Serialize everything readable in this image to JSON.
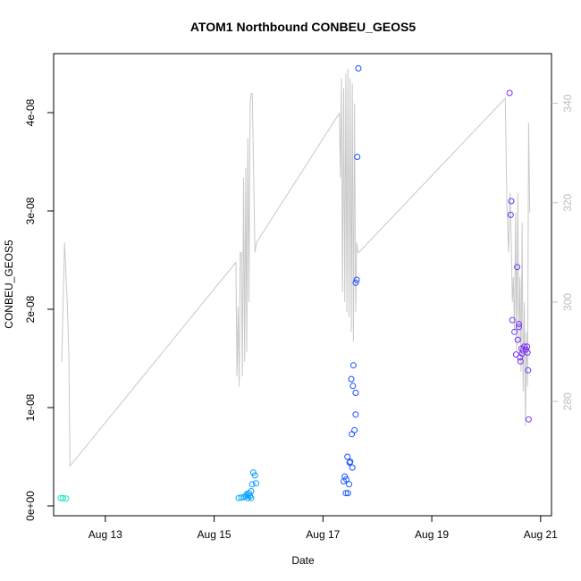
{
  "chart_data": {
    "type": "scatter",
    "title": "ATOM1 Northbound CONBEU_GEOS5",
    "xlabel": "Date",
    "ylabel": "CONBEU_GEOS5",
    "x_ticks": [
      "Aug 13",
      "Aug 15",
      "Aug 17",
      "Aug 19",
      "Aug 21"
    ],
    "y_ticks": [
      "0e+00",
      "1e-08",
      "2e-08",
      "3e-08",
      "4e-08"
    ],
    "y_right_ticks": [
      "280",
      "300",
      "320",
      "340"
    ],
    "xlim": [
      12.05,
      21.2
    ],
    "ylim": [
      -1e-09,
      4.6e-08
    ],
    "y_right_lim": [
      257,
      350
    ],
    "grid": false,
    "colors": {
      "axis": "#000000",
      "right_axis": "#bdbdbd",
      "line": "#c8c8c8",
      "points_gradient": [
        "#1de9b6",
        "#00bfff",
        "#1e40ff",
        "#7b2ff7"
      ]
    },
    "series": [
      {
        "kind": "points",
        "points": [
          [
            12.18,
            8e-10
          ],
          [
            12.22,
            8e-10
          ],
          [
            12.28,
            7.5e-10
          ],
          [
            15.45,
            8e-10
          ],
          [
            15.5,
            8.5e-10
          ],
          [
            15.55,
            9e-10
          ],
          [
            15.58,
            1e-09
          ],
          [
            15.6,
            1.2e-09
          ],
          [
            15.62,
            8e-10
          ],
          [
            15.64,
            1.3e-09
          ],
          [
            15.66,
            1e-09
          ],
          [
            15.68,
            1.5e-09
          ],
          [
            15.7,
            2.2e-09
          ],
          [
            15.72,
            3.4e-09
          ],
          [
            15.75,
            3.1e-09
          ],
          [
            15.77,
            2.3e-09
          ],
          [
            15.68,
            8e-10
          ],
          [
            15.63,
            1.1e-09
          ],
          [
            17.38,
            2.5e-09
          ],
          [
            17.4,
            3e-09
          ],
          [
            17.42,
            1.3e-09
          ],
          [
            17.43,
            2.7e-09
          ],
          [
            17.45,
            5e-09
          ],
          [
            17.46,
            1.3e-09
          ],
          [
            17.48,
            2.2e-09
          ],
          [
            17.49,
            4.4e-09
          ],
          [
            17.5,
            4.5e-09
          ],
          [
            17.52,
            1.29e-08
          ],
          [
            17.53,
            7.3e-09
          ],
          [
            17.54,
            3.9e-09
          ],
          [
            17.55,
            1.22e-08
          ],
          [
            17.56,
            1.43e-08
          ],
          [
            17.58,
            7.7e-09
          ],
          [
            17.6,
            9.3e-09
          ],
          [
            17.6,
            1.15e-08
          ],
          [
            17.6,
            2.27e-08
          ],
          [
            17.62,
            2.3e-08
          ],
          [
            17.63,
            3.55e-08
          ],
          [
            17.65,
            4.45e-08
          ],
          [
            20.43,
            4.2e-08
          ],
          [
            20.45,
            2.96e-08
          ],
          [
            20.46,
            3.1e-08
          ],
          [
            20.48,
            1.89e-08
          ],
          [
            20.52,
            1.77e-08
          ],
          [
            20.55,
            1.54e-08
          ],
          [
            20.57,
            2.43e-08
          ],
          [
            20.58,
            1.69e-08
          ],
          [
            20.6,
            1.85e-08
          ],
          [
            20.6,
            1.82e-08
          ],
          [
            20.62,
            1.51e-08
          ],
          [
            20.63,
            1.47e-08
          ],
          [
            20.65,
            1.6e-08
          ],
          [
            20.66,
            1.55e-08
          ],
          [
            20.68,
            1.58e-08
          ],
          [
            20.7,
            1.62e-08
          ],
          [
            20.73,
            1.59e-08
          ],
          [
            20.75,
            1.62e-08
          ],
          [
            20.76,
            1.56e-08
          ],
          [
            20.77,
            1.38e-08
          ],
          [
            20.78,
            8.8e-09
          ]
        ]
      },
      {
        "kind": "line",
        "axis": "right",
        "points": [
          [
            12.2,
            288
          ],
          [
            12.25,
            312
          ],
          [
            12.3,
            300
          ],
          [
            12.33,
            290
          ],
          [
            12.35,
            267
          ],
          [
            15.4,
            308
          ],
          [
            15.42,
            285
          ],
          [
            15.44,
            299
          ],
          [
            15.46,
            283
          ],
          [
            15.48,
            310
          ],
          [
            15.5,
            310
          ],
          [
            15.52,
            285
          ],
          [
            15.54,
            325
          ],
          [
            15.56,
            288
          ],
          [
            15.58,
            327
          ],
          [
            15.6,
            290
          ],
          [
            15.62,
            333
          ],
          [
            15.64,
            300
          ],
          [
            15.66,
            340
          ],
          [
            15.68,
            342
          ],
          [
            15.7,
            342
          ],
          [
            15.72,
            330
          ],
          [
            15.75,
            310
          ],
          [
            15.78,
            312
          ],
          [
            17.3,
            338
          ],
          [
            17.32,
            325
          ],
          [
            17.34,
            345
          ],
          [
            17.36,
            302
          ],
          [
            17.38,
            343
          ],
          [
            17.4,
            300
          ],
          [
            17.42,
            346
          ],
          [
            17.44,
            298
          ],
          [
            17.46,
            347
          ],
          [
            17.48,
            297
          ],
          [
            17.5,
            345
          ],
          [
            17.52,
            294
          ],
          [
            17.54,
            344
          ],
          [
            17.56,
            292
          ],
          [
            17.58,
            340
          ],
          [
            17.6,
            298
          ],
          [
            17.62,
            312
          ],
          [
            17.64,
            310
          ],
          [
            17.66,
            310
          ],
          [
            20.35,
            341
          ],
          [
            20.38,
            320
          ],
          [
            20.41,
            310
          ],
          [
            20.44,
            322
          ],
          [
            20.46,
            312
          ],
          [
            20.48,
            300
          ],
          [
            20.5,
            305
          ],
          [
            20.52,
            294
          ],
          [
            20.54,
            318
          ],
          [
            20.56,
            290
          ],
          [
            20.58,
            322
          ],
          [
            20.6,
            292
          ],
          [
            20.62,
            305
          ],
          [
            20.64,
            286
          ],
          [
            20.66,
            316
          ],
          [
            20.68,
            282
          ],
          [
            20.7,
            300
          ],
          [
            20.72,
            275
          ],
          [
            20.74,
            294
          ],
          [
            20.76,
            283
          ],
          [
            20.78,
            336
          ],
          [
            20.8,
            318
          ]
        ]
      }
    ]
  }
}
